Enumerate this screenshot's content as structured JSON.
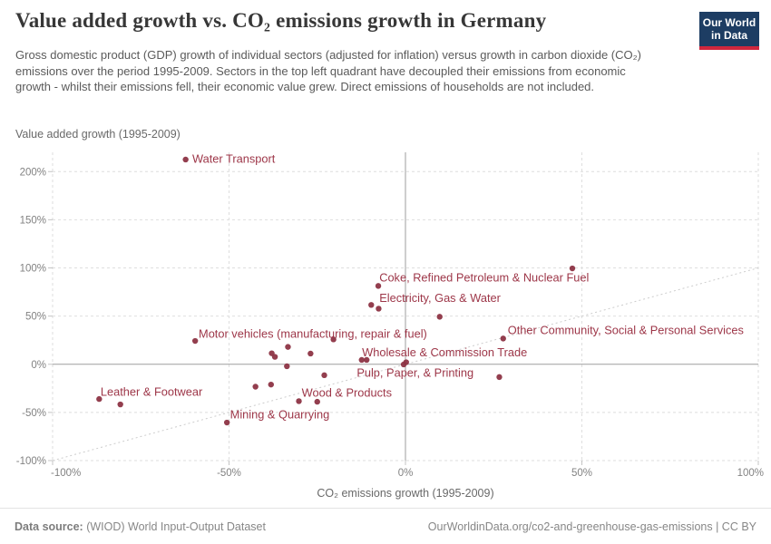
{
  "logo": {
    "line1": "Our World",
    "line2": "in Data",
    "bg_color": "#1d3d63",
    "bar_color": "#d0273d"
  },
  "footer": {
    "source_label": "Data source:",
    "source_text": "(WIOD) World Input-Output Dataset",
    "credit": "OurWorldinData.org/co2-and-greenhouse-gas-emissions | CC BY"
  },
  "chart_data": {
    "type": "scatter",
    "title": "Value added growth vs. CO₂ emissions growth in Germany",
    "subtitle": "Gross domestic product (GDP) growth of individual sectors (adjusted for inflation) versus growth in carbon dioxide (CO₂) emissions over the period 1995-2009. Sectors in the top left quadrant have decoupled their emissions from economic growth - whilst their emissions fell, their economic value grew. Direct emissions of households are not included.",
    "xlabel": "CO₂ emissions growth (1995-2009)",
    "ylabel": "Value added growth (1995-2009)",
    "xlim": [
      -100,
      100
    ],
    "ylim": [
      -100,
      220
    ],
    "x_ticks": [
      -100,
      -50,
      0,
      50,
      100
    ],
    "y_ticks": [
      -100,
      -50,
      0,
      50,
      100,
      150,
      200
    ],
    "tick_suffix": "%",
    "grid": true,
    "legend": "none",
    "reference_line": {
      "from": [
        -100,
        -100
      ],
      "to": [
        100,
        100
      ]
    },
    "dot_color": "#8d3444",
    "label_color": "#9d3648",
    "points": [
      {
        "x": -62.3,
        "y": 212.5,
        "label": "Water Transport",
        "label_x": -60.4,
        "label_y": 213.2
      },
      {
        "x": -7.7,
        "y": 81.3,
        "label": "Coke, Refined Petroleum & Nuclear Fuel",
        "label_x": -7.4,
        "label_y": 90.0
      },
      {
        "x": -9.7,
        "y": 61.6,
        "label": "Electricity, Gas & Water",
        "label_x": -7.4,
        "label_y": 68.8
      },
      {
        "x": -59.6,
        "y": 24.2,
        "label": "Motor vehicles (manufacturing, repair & fuel)",
        "label_x": -58.6,
        "label_y": 31.5
      },
      {
        "x": 27.7,
        "y": 26.7,
        "label": "Other Community, Social & Personal Services",
        "label_x": 29.0,
        "label_y": 35.3
      },
      {
        "x": -11.0,
        "y": 4.5,
        "label": "Wholesale & Commission Trade",
        "label_x": -12.3,
        "label_y": 12.2
      },
      {
        "x": 0.2,
        "y": 2.1,
        "label": "Pulp, Paper, & Printing",
        "label_x": -13.8,
        "label_y": -8.9
      },
      {
        "x": -30.2,
        "y": -38.3,
        "label": "Wood & Products",
        "label_x": -29.4,
        "label_y": -29.6
      },
      {
        "x": -86.8,
        "y": -36.1,
        "label": "Leather & Footwear",
        "label_x": -86.4,
        "label_y": -28.7
      },
      {
        "x": -50.6,
        "y": -60.5,
        "label": "Mining & Quarrying",
        "label_x": -49.7,
        "label_y": -52.3
      },
      {
        "x": -7.6,
        "y": 57.7
      },
      {
        "x": 47.3,
        "y": 99.5
      },
      {
        "x": 9.7,
        "y": 49.3
      },
      {
        "x": 26.6,
        "y": -13.3
      },
      {
        "x": -20.4,
        "y": 25.8
      },
      {
        "x": -37.9,
        "y": 11.4
      },
      {
        "x": -37.0,
        "y": 7.7
      },
      {
        "x": -33.3,
        "y": 18.0
      },
      {
        "x": -26.9,
        "y": 11.1
      },
      {
        "x": -33.6,
        "y": -2.1
      },
      {
        "x": -23.0,
        "y": -11.4
      },
      {
        "x": -42.5,
        "y": -23.3
      },
      {
        "x": -38.1,
        "y": -21.1
      },
      {
        "x": -25.0,
        "y": -38.9
      },
      {
        "x": -12.4,
        "y": 4.5
      },
      {
        "x": -0.5,
        "y": -0.2
      },
      {
        "x": -80.8,
        "y": -41.7
      }
    ]
  }
}
